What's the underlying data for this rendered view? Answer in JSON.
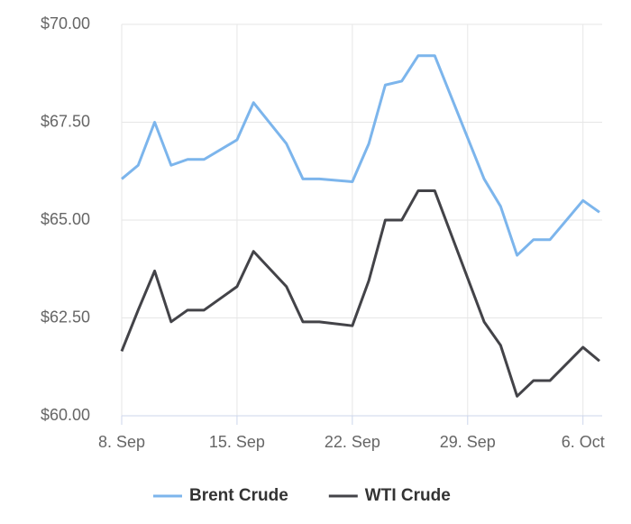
{
  "chart_data": {
    "type": "line",
    "x": [
      "8. Sep",
      "9. Sep",
      "10. Sep",
      "11. Sep",
      "12. Sep",
      "13. Sep",
      "15. Sep",
      "16. Sep",
      "18. Sep",
      "19. Sep",
      "20. Sep",
      "22. Sep",
      "23. Sep",
      "24. Sep",
      "25. Sep",
      "26. Sep",
      "27. Sep",
      "30. Sep",
      "1. Oct",
      "2. Oct",
      "3. Oct",
      "4. Oct",
      "6. Oct",
      "7. Oct"
    ],
    "series": [
      {
        "name": "Brent Crude",
        "color": "#7cb5ec",
        "values": [
          66.05,
          66.4,
          67.5,
          66.4,
          66.55,
          66.55,
          67.05,
          68.0,
          66.95,
          66.05,
          66.05,
          65.98,
          66.95,
          68.45,
          68.55,
          69.2,
          69.2,
          66.05,
          65.35,
          64.1,
          64.5,
          64.5,
          65.5,
          65.2
        ]
      },
      {
        "name": "WTI Crude",
        "color": "#434348",
        "values": [
          61.65,
          62.7,
          63.7,
          62.4,
          62.7,
          62.7,
          63.3,
          64.2,
          63.3,
          62.4,
          62.4,
          62.3,
          63.45,
          65.0,
          65.0,
          65.75,
          65.75,
          62.4,
          61.8,
          60.5,
          60.9,
          60.9,
          61.75,
          61.4
        ]
      }
    ],
    "xlim": [
      "8. Sep",
      "7. Oct"
    ],
    "xticks": [
      "8. Sep",
      "15. Sep",
      "22. Sep",
      "29. Sep",
      "6. Oct"
    ],
    "ylim": [
      60,
      70
    ],
    "yticks": [
      {
        "value": 60,
        "label": "$60.00"
      },
      {
        "value": 62.5,
        "label": "$62.50"
      },
      {
        "value": 65,
        "label": "$65.00"
      },
      {
        "value": 67.5,
        "label": "$67.50"
      },
      {
        "value": 70,
        "label": "$70.00"
      }
    ],
    "grid": true,
    "legend": "bottom"
  }
}
